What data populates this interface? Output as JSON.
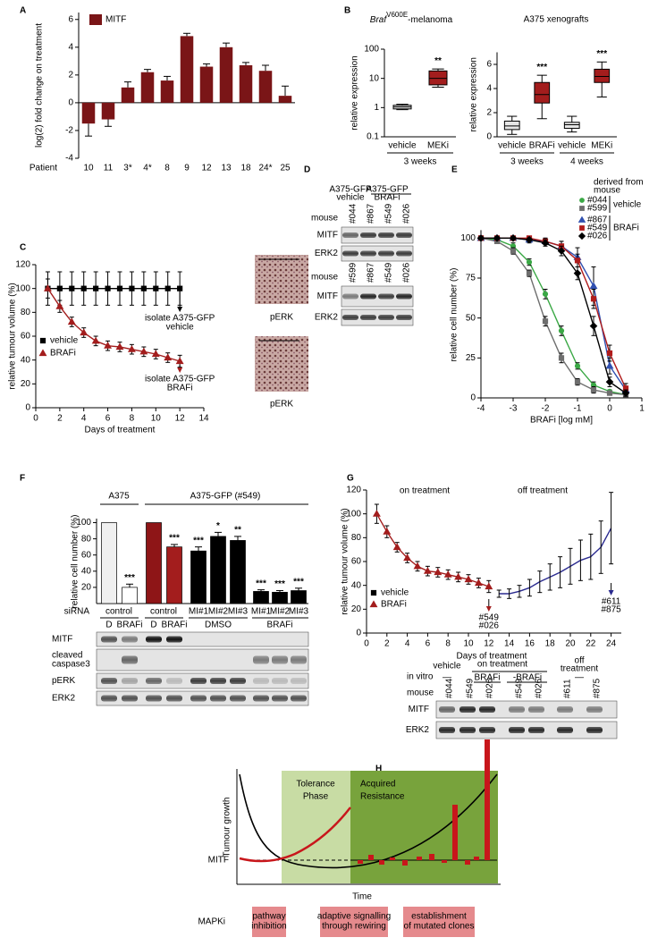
{
  "panel_labels": [
    "A",
    "B",
    "C",
    "D",
    "E",
    "F",
    "G",
    "H"
  ],
  "chart_data": [
    {
      "type": "bar",
      "ylabel": "log(2) fold change on treatment",
      "xlabel": "Patient",
      "categories": [
        "10",
        "11",
        "3*",
        "4*",
        "8",
        "9",
        "12",
        "13",
        "18",
        "24*",
        "25"
      ],
      "series": [
        {
          "name": "MITF",
          "color": "#7a1517",
          "values": [
            -1.5,
            -1.2,
            1.1,
            2.2,
            1.6,
            4.8,
            2.6,
            4.0,
            2.7,
            2.3,
            0.5
          ],
          "errors": [
            0.9,
            0.5,
            0.4,
            0.2,
            0.3,
            0.2,
            0.2,
            0.3,
            0.2,
            0.4,
            0.7
          ]
        }
      ],
      "ylim": [
        -4,
        6.5
      ],
      "yticks": [
        -4,
        -2,
        0,
        2,
        4,
        6
      ],
      "legend": "upper left"
    },
    {
      "type": "box",
      "title_parts": [
        "Braf",
        "V600E",
        "-melanoma"
      ],
      "ylabel": "relative expression",
      "categories": [
        "vehicle",
        "MEKi"
      ],
      "groups": [
        "3 weeks"
      ],
      "colors": [
        "#e6e6e6",
        "#a31d1d"
      ],
      "boxes": [
        {
          "min": 0.85,
          "q1": 0.9,
          "median": 1.05,
          "q3": 1.2,
          "max": 1.3
        },
        {
          "min": 5,
          "q1": 6,
          "median": 10,
          "q3": 18,
          "max": 21
        }
      ],
      "significance": [
        null,
        "**"
      ],
      "log": true,
      "ylim": [
        0.1,
        100
      ],
      "yticks": [
        0.1,
        1,
        10,
        100
      ]
    },
    {
      "type": "box",
      "title": "A375 xenografts",
      "ylabel": "relative expression",
      "categories": [
        "vehicle",
        "BRAFi",
        "vehicle",
        "MEKi"
      ],
      "groups": [
        "3 weeks",
        "4 weeks"
      ],
      "colors": [
        "#e6e6e6",
        "#a31d1d",
        "#e6e6e6",
        "#a31d1d"
      ],
      "boxes": [
        {
          "min": 0.2,
          "q1": 0.6,
          "median": 0.9,
          "q3": 1.3,
          "max": 1.7
        },
        {
          "min": 1.5,
          "q1": 2.8,
          "median": 3.5,
          "q3": 4.5,
          "max": 5.1
        },
        {
          "min": 0.4,
          "q1": 0.7,
          "median": 1.0,
          "q3": 1.2,
          "max": 1.7
        },
        {
          "min": 3.3,
          "q1": 4.5,
          "median": 5.0,
          "q3": 5.6,
          "max": 6.2
        }
      ],
      "significance": [
        null,
        "***",
        null,
        "***"
      ],
      "ylim": [
        0,
        7
      ],
      "yticks": [
        0,
        2,
        4,
        6
      ]
    },
    {
      "type": "line",
      "xlabel": "Days of treatment",
      "ylabel": "relative tumour volume (%)",
      "xlim": [
        0,
        14
      ],
      "xticks": [
        0,
        2,
        4,
        6,
        8,
        10,
        12,
        14
      ],
      "ylim": [
        0,
        120
      ],
      "yticks": [
        0,
        20,
        40,
        60,
        80,
        100,
        120
      ],
      "series": [
        {
          "name": "vehicle",
          "color": "#000000",
          "marker": "square",
          "x": [
            1,
            2,
            3,
            4,
            5,
            6,
            7,
            8,
            9,
            10,
            11,
            12
          ],
          "values": [
            100,
            100,
            100,
            100,
            100,
            100,
            100,
            100,
            100,
            100,
            100,
            100
          ],
          "errors": [
            14,
            14,
            14,
            14,
            14,
            14,
            14,
            14,
            14,
            14,
            14,
            14
          ]
        },
        {
          "name": "BRAFi",
          "color": "#a31d1d",
          "marker": "triangle",
          "x": [
            1,
            2,
            3,
            4,
            5,
            6,
            7,
            8,
            9,
            10,
            11,
            12
          ],
          "values": [
            100,
            85,
            72,
            63,
            56,
            52,
            51,
            49,
            47,
            45,
            42,
            39
          ],
          "errors": [
            8,
            5,
            4,
            4,
            4,
            4,
            4,
            4,
            4,
            4,
            4,
            5
          ]
        }
      ],
      "annotations": [
        {
          "lines": [
            "isolate A375-GFP",
            "vehicle"
          ],
          "color": "#000000"
        },
        {
          "lines": [
            "isolate A375-GFP",
            "BRAFi"
          ],
          "color": "#a31d1d"
        }
      ],
      "image_labels": [
        "pERK",
        "pERK"
      ]
    },
    {
      "type": "line",
      "xlabel": "BRAFi [log mM]",
      "ylabel": "relative cell number (%)",
      "xlim": [
        -4,
        1
      ],
      "xticks": [
        -4,
        -3,
        -2,
        -1,
        0,
        1
      ],
      "ylim": [
        0,
        105
      ],
      "yticks": [
        0,
        25,
        50,
        75,
        100
      ],
      "legend_title": [
        "derived from",
        "mouse"
      ],
      "legend_groups": [
        "vehicle",
        "BRAFi"
      ],
      "series": [
        {
          "name": "#044",
          "color": "#3aa845",
          "marker": "circle",
          "x": [
            -4,
            -3.5,
            -3,
            -2.5,
            -2,
            -1.5,
            -1,
            -0.5,
            0,
            0.5
          ],
          "values": [
            100,
            99,
            95,
            85,
            65,
            42,
            20,
            8,
            4,
            2
          ],
          "errors": [
            1,
            1,
            2,
            2,
            3,
            3,
            2,
            2,
            1,
            1
          ]
        },
        {
          "name": "#599",
          "color": "#6e6e6e",
          "marker": "square",
          "x": [
            -4,
            -3.5,
            -3,
            -2.5,
            -2,
            -1.5,
            -1,
            -0.5,
            0,
            0.5
          ],
          "values": [
            100,
            98,
            92,
            78,
            48,
            25,
            10,
            5,
            3,
            2
          ],
          "errors": [
            1,
            1,
            2,
            2,
            3,
            3,
            2,
            2,
            1,
            1
          ]
        },
        {
          "name": "#867",
          "color": "#3050b0",
          "marker": "triangle",
          "x": [
            -4,
            -3.5,
            -3,
            -2.5,
            -2,
            -1.5,
            -1,
            -0.5,
            0,
            0.5
          ],
          "values": [
            100,
            100,
            100,
            99,
            98,
            95,
            88,
            70,
            20,
            5
          ],
          "errors": [
            1,
            1,
            1,
            2,
            2,
            3,
            6,
            12,
            5,
            2
          ]
        },
        {
          "name": "#549",
          "color": "#b01c1c",
          "marker": "square",
          "x": [
            -4,
            -3.5,
            -3,
            -2.5,
            -2,
            -1.5,
            -1,
            -0.5,
            0,
            0.5
          ],
          "values": [
            100,
            100,
            100,
            100,
            98,
            95,
            86,
            62,
            28,
            6
          ],
          "errors": [
            1,
            1,
            1,
            1,
            2,
            3,
            4,
            6,
            5,
            3
          ]
        },
        {
          "name": "#026",
          "color": "#000000",
          "marker": "diamond",
          "x": [
            -4,
            -3.5,
            -3,
            -2.5,
            -2,
            -1.5,
            -1,
            -0.5,
            0,
            0.5
          ],
          "values": [
            100,
            100,
            100,
            99,
            97,
            92,
            78,
            45,
            10,
            3
          ],
          "errors": [
            1,
            1,
            1,
            1,
            2,
            3,
            4,
            6,
            3,
            2
          ]
        }
      ]
    },
    {
      "type": "bar",
      "ylabel": "relative cell number (%)",
      "headers": [
        "A375",
        "A375-GFP (#549)"
      ],
      "row_label": "siRNA",
      "sirna_labels": [
        "control",
        "control",
        "MI#1",
        "MI#2",
        "MI#3",
        "MI#1",
        "MI#2",
        "MI#3"
      ],
      "treatment_labels": [
        "D",
        "BRAFi",
        "D",
        "BRAFi",
        "DMSO",
        "BRAFi"
      ],
      "values": [
        100,
        20,
        100,
        70,
        65,
        83,
        78,
        15,
        14,
        16
      ],
      "errors": [
        0,
        4,
        0,
        3,
        5,
        5,
        5,
        2,
        2,
        3
      ],
      "significance": [
        null,
        "***",
        null,
        "***",
        "***",
        "*",
        "**",
        "***",
        "***",
        "***"
      ],
      "colors": [
        "#f0f0f0",
        "#ffffff",
        "#8e1517",
        "#a31d1d",
        "#000000",
        "#000000",
        "#000000",
        "#000000",
        "#000000",
        "#000000"
      ],
      "ylim": [
        0,
        105
      ],
      "yticks": [
        20,
        40,
        60,
        80,
        100
      ]
    },
    {
      "type": "line",
      "xlabel": "Days of treatment",
      "ylabel": "relative tumour  volume  (%)",
      "xlim": [
        0,
        25
      ],
      "xticks": [
        0,
        2,
        4,
        6,
        8,
        10,
        12,
        14,
        16,
        18,
        20,
        22,
        24
      ],
      "ylim": [
        0,
        120
      ],
      "yticks": [
        0,
        20,
        40,
        60,
        80,
        100,
        120
      ],
      "legend": [
        {
          "name": "vehicle",
          "color": "#000000",
          "marker": "square"
        },
        {
          "name": "BRAFi",
          "color": "#a31d1d",
          "marker": "triangle"
        }
      ],
      "series": [
        {
          "name": "on treatment",
          "color": "#a31d1d",
          "marker": "triangle",
          "x": [
            1,
            2,
            3,
            4,
            5,
            6,
            7,
            8,
            9,
            10,
            11,
            12
          ],
          "values": [
            100,
            85,
            72,
            63,
            56,
            52,
            51,
            49,
            47,
            45,
            42,
            39
          ],
          "errors": [
            8,
            5,
            4,
            4,
            4,
            4,
            4,
            4,
            4,
            4,
            4,
            5
          ]
        },
        {
          "name": "off treatment",
          "color": "#2a2a8f",
          "marker": "none",
          "x": [
            13,
            14,
            15,
            16,
            17,
            18,
            19,
            20,
            21,
            22,
            23,
            24
          ],
          "values": [
            33,
            33,
            35,
            38,
            43,
            47,
            51,
            56,
            61,
            64,
            72,
            88
          ],
          "errors": [
            3,
            4,
            5,
            7,
            9,
            11,
            13,
            15,
            17,
            19,
            22,
            30
          ]
        }
      ],
      "arrows": [
        {
          "x": 12,
          "lines": [
            "#549",
            "#026"
          ],
          "color": "#a31d1d"
        },
        {
          "x": 24,
          "lines": [
            "#611",
            "#875"
          ],
          "color": "#2a2a8f"
        }
      ]
    }
  ],
  "blot_d": {
    "headers": [
      {
        "lines": [
          "A375-GFP",
          "vehicle"
        ],
        "color": "#000000"
      },
      {
        "lines": [
          "A375-GFP",
          "BRAFi"
        ],
        "color": "#a31d1d"
      }
    ],
    "blocks": [
      {
        "label": "mouse",
        "lanes": [
          "#044",
          "#867",
          "#549",
          "#026"
        ],
        "rows": [
          "MITF",
          "ERK2"
        ]
      },
      {
        "label": "mouse",
        "lanes": [
          "#599",
          "#867",
          "#549",
          "#026"
        ],
        "rows": [
          "MITF",
          "ERK2"
        ]
      }
    ]
  },
  "blot_f": {
    "rows": [
      [
        "MITF"
      ],
      [
        "cleaved",
        "caspase3"
      ],
      [
        "pERK"
      ],
      [
        "ERK2"
      ]
    ]
  },
  "blot_g": {
    "condition_label": "in vitro",
    "groups": [
      {
        "lines": [
          "vehicle"
        ],
        "sub": [
          "—"
        ],
        "color": "#000000"
      },
      {
        "lines": [
          "on treatment"
        ],
        "sub": [
          "BRAFi",
          "-BRAFi"
        ],
        "color": "#a31d1d"
      },
      {
        "lines": [
          "off",
          "treatment"
        ],
        "sub": [
          "—"
        ],
        "color": "#2a2a8f"
      }
    ],
    "mouse_label": "mouse",
    "lanes": [
      "#044",
      "#549",
      "#026",
      "#549",
      "#026",
      "#611",
      "#875"
    ],
    "lane_colors": [
      "#000000",
      "#a31d1d",
      "#a31d1d",
      "#a31d1d",
      "#a31d1d",
      "#2a2a8f",
      "#2a2a8f"
    ],
    "rows": [
      "MITF",
      "ERK2"
    ]
  },
  "diagram_h": {
    "y_label": "Tumour growth",
    "x_label": "Time",
    "marker_label": "MITF",
    "phases": [
      [
        "Tolerance",
        "Phase"
      ],
      [
        "Acquired",
        "Resistance"
      ]
    ],
    "row_label": "MAPKi",
    "stages": [
      [
        "pathway",
        "inhibition"
      ],
      [
        "adaptive signalling",
        "through rewiring"
      ],
      [
        "establishment",
        "of mutated clones"
      ]
    ]
  }
}
